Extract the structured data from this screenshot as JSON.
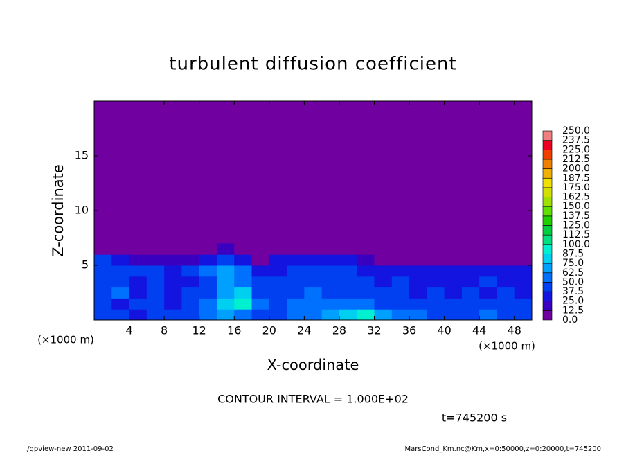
{
  "chart_data": {
    "type": "heatmap",
    "title": "turbulent diffusion coefficient",
    "x_label": "X-coordinate",
    "y_label": "Z-coordinate",
    "x_unit": "(×1000 m)",
    "y_unit": "(×1000 m)",
    "xlim": [
      0,
      50
    ],
    "ylim": [
      0,
      20
    ],
    "xticks": [
      4,
      8,
      12,
      16,
      20,
      24,
      28,
      32,
      36,
      40,
      44,
      48
    ],
    "yticks": [
      5,
      10,
      15
    ],
    "x_edges": [
      0,
      2,
      4,
      6,
      8,
      10,
      12,
      14,
      16,
      18,
      20,
      22,
      24,
      26,
      28,
      30,
      32,
      34,
      36,
      38,
      40,
      42,
      44,
      46,
      48,
      50
    ],
    "z_edges": [
      0,
      1,
      2,
      3,
      4,
      5,
      6,
      7
    ],
    "values": [
      [
        45,
        40,
        35,
        40,
        45,
        40,
        55,
        70,
        60,
        45,
        40,
        55,
        60,
        65,
        75,
        90,
        70,
        60,
        50,
        45,
        40,
        45,
        50,
        45,
        40
      ],
      [
        40,
        35,
        45,
        40,
        35,
        45,
        50,
        75,
        90,
        50,
        40,
        50,
        55,
        60,
        55,
        50,
        45,
        45,
        40,
        45,
        40,
        40,
        45,
        40,
        40
      ],
      [
        45,
        50,
        30,
        40,
        35,
        40,
        45,
        70,
        85,
        45,
        40,
        45,
        50,
        45,
        45,
        40,
        40,
        40,
        35,
        40,
        35,
        40,
        35,
        40,
        35
      ],
      [
        40,
        45,
        35,
        45,
        30,
        35,
        40,
        65,
        60,
        40,
        40,
        45,
        45,
        40,
        45,
        40,
        35,
        40,
        30,
        35,
        30,
        35,
        40,
        35,
        30
      ],
      [
        45,
        40,
        45,
        40,
        35,
        40,
        50,
        70,
        60,
        35,
        35,
        40,
        40,
        40,
        40,
        35,
        30,
        30,
        25,
        30,
        35,
        30,
        30,
        30,
        30
      ],
      [
        40,
        30,
        20,
        20,
        15,
        20,
        25,
        45,
        35,
        10,
        25,
        35,
        35,
        35,
        30,
        20,
        10,
        10,
        5,
        5,
        10,
        5,
        10,
        5,
        10
      ],
      [
        10,
        0,
        0,
        0,
        0,
        0,
        5,
        15,
        10,
        0,
        0,
        5,
        10,
        5,
        0,
        0,
        0,
        0,
        0,
        0,
        0,
        0,
        0,
        0,
        0
      ]
    ],
    "levels": [
      {
        "value": 0,
        "label": "0.0"
      },
      {
        "value": 12.5,
        "label": "12.5"
      },
      {
        "value": 25,
        "label": "25.0"
      },
      {
        "value": 37.5,
        "label": "37.5"
      },
      {
        "value": 50,
        "label": "50.0"
      },
      {
        "value": 62.5,
        "label": "62.5"
      },
      {
        "value": 75,
        "label": "75.0"
      },
      {
        "value": 87.5,
        "label": "87.5"
      },
      {
        "value": 100,
        "label": "100.0"
      },
      {
        "value": 112.5,
        "label": "112.5"
      },
      {
        "value": 125,
        "label": "125.0"
      },
      {
        "value": 137.5,
        "label": "137.5"
      },
      {
        "value": 150,
        "label": "150.0"
      },
      {
        "value": 162.5,
        "label": "162.5"
      },
      {
        "value": 175,
        "label": "175.0"
      },
      {
        "value": 187.5,
        "label": "187.5"
      },
      {
        "value": 200,
        "label": "200.0"
      },
      {
        "value": 212.5,
        "label": "212.5"
      },
      {
        "value": 225,
        "label": "225.0"
      },
      {
        "value": 237.5,
        "label": "237.5"
      },
      {
        "value": 250,
        "label": "250.0"
      }
    ],
    "colors": [
      "#7000a0",
      "#3a00c0",
      "#1414e0",
      "#0040f0",
      "#0070ff",
      "#00a0ff",
      "#00d0f0",
      "#00f0d0",
      "#00e080",
      "#00d040",
      "#20d000",
      "#60e000",
      "#a0e000",
      "#d0e000",
      "#f0e000",
      "#f0b000",
      "#f08000",
      "#f04000",
      "#f00020",
      "#f08080"
    ],
    "contour_note": "CONTOUR INTERVAL = 1.000E+02",
    "time_note": "t=745200 s",
    "footer_left": "./gpview-new  2011-09-02",
    "footer_right": "MarsCond_Km.nc@Km,x=0:50000,z=0:20000,t=745200"
  }
}
